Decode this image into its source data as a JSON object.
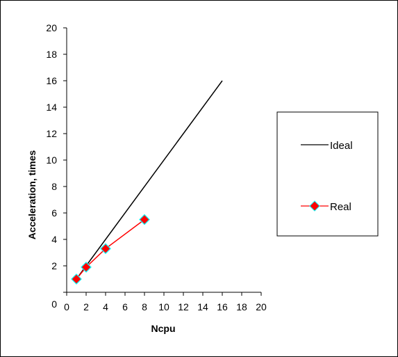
{
  "chart_data": {
    "type": "line",
    "title": "",
    "xlabel": "Ncpu",
    "ylabel": "Acceleration, times",
    "xlim": [
      0,
      20
    ],
    "ylim": [
      0,
      20
    ],
    "xticks": [
      0,
      2,
      4,
      6,
      8,
      10,
      12,
      14,
      16,
      18,
      20
    ],
    "yticks": [
      0,
      2,
      4,
      6,
      8,
      10,
      12,
      14,
      16,
      18,
      20
    ],
    "grid": false,
    "legend": "right",
    "series": [
      {
        "name": "Ideal",
        "color": "#000000",
        "marker": "none",
        "x": [
          1,
          16
        ],
        "y": [
          1,
          16
        ]
      },
      {
        "name": "Real",
        "color": "#ff0000",
        "marker": "diamond",
        "marker_fill": "#ff0000",
        "marker_edge": "#00ffff",
        "x": [
          1,
          2,
          4,
          8
        ],
        "y": [
          1,
          1.9,
          3.3,
          5.5
        ]
      }
    ]
  }
}
